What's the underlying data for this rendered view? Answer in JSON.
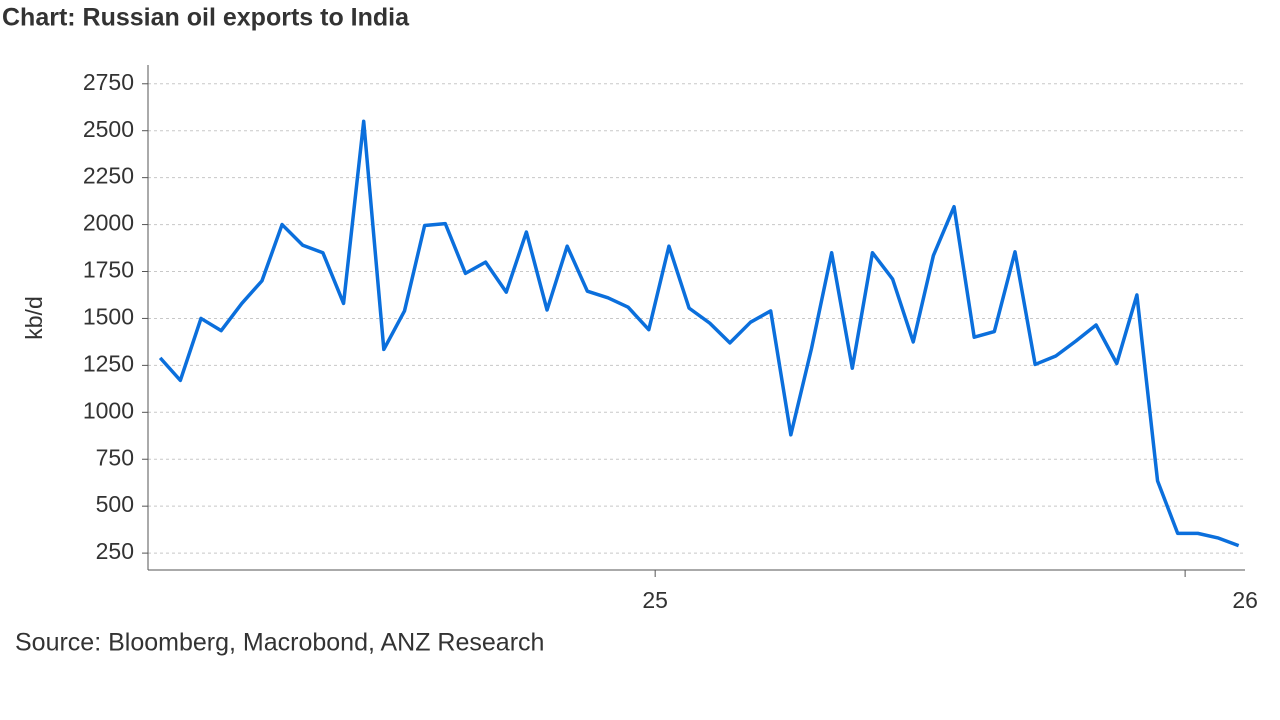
{
  "chart_data": {
    "type": "line",
    "title": "Chart: Russian oil exports to India",
    "ylabel": "kb/d",
    "source": "Source:  Bloomberg, Macrobond, ANZ Research",
    "x": [
      24.066,
      24.104,
      24.143,
      24.181,
      24.22,
      24.258,
      24.296,
      24.335,
      24.373,
      24.412,
      24.45,
      24.488,
      24.527,
      24.565,
      24.604,
      24.642,
      24.68,
      24.719,
      24.757,
      24.796,
      24.834,
      24.872,
      24.911,
      24.949,
      24.988,
      25.026,
      25.064,
      25.103,
      25.141,
      25.18,
      25.218,
      25.256,
      25.295,
      25.333,
      25.372,
      25.41,
      25.448,
      25.487,
      25.525,
      25.564,
      25.602,
      25.64,
      25.679,
      25.717,
      25.756,
      25.794,
      25.832,
      25.871,
      25.909,
      25.948,
      25.986,
      26.024,
      26.063,
      26.101
    ],
    "series": [
      {
        "name": "Russian oil exports to India",
        "color": "#0b6fdc",
        "values": [
          1290,
          1170,
          1500,
          1435,
          1580,
          1700,
          2000,
          1890,
          1850,
          1580,
          2550,
          1335,
          1540,
          1995,
          2005,
          1740,
          1800,
          1640,
          1960,
          1545,
          1885,
          1645,
          1610,
          1560,
          1440,
          1885,
          1555,
          1475,
          1370,
          1480,
          1540,
          880,
          1340,
          1850,
          1235,
          1850,
          1710,
          1375,
          1835,
          2095,
          1400,
          1430,
          1855,
          1255,
          1300,
          1380,
          1465,
          1260,
          1625,
          635,
          355,
          355,
          330,
          290
        ]
      }
    ],
    "xlim": [
      24.043,
      26.113
    ],
    "xticks": [
      25,
      26
    ],
    "ylim": [
      160,
      2850
    ],
    "yticks": [
      250,
      500,
      750,
      1000,
      1250,
      1500,
      1750,
      2000,
      2250,
      2500,
      2750
    ],
    "grid": true
  }
}
